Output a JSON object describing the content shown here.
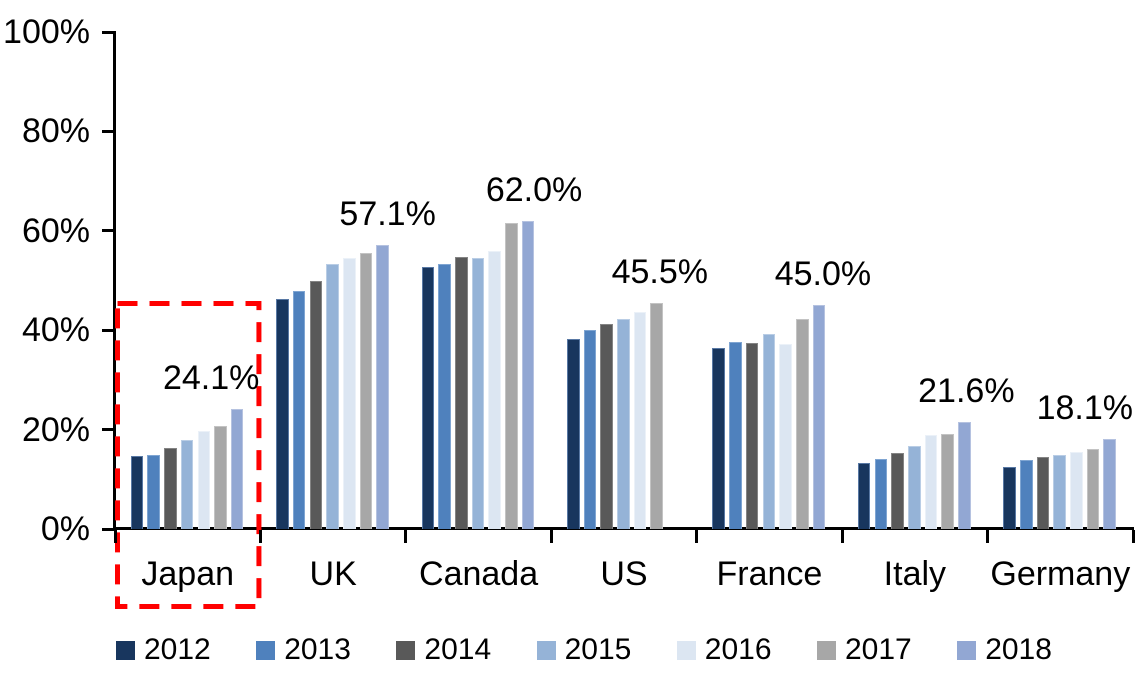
{
  "chart_data": {
    "type": "bar",
    "title": "",
    "xlabel": "",
    "ylabel": "",
    "ylim": [
      0,
      100
    ],
    "yticks": [
      "0%",
      "20%",
      "40%",
      "60%",
      "80%",
      "100%"
    ],
    "grid": false,
    "legend_position": "bottom",
    "background": "#FFFFFF",
    "axis_color": "#000000",
    "categories": [
      "Japan",
      "UK",
      "Canada",
      "US",
      "France",
      "Italy",
      "Germany"
    ],
    "series": [
      {
        "name": "2012",
        "color": "#18365E",
        "edge": "#5878A4",
        "values": [
          14.7,
          46.3,
          52.8,
          38.2,
          36.5,
          13.2,
          12.5
        ]
      },
      {
        "name": "2013",
        "color": "#4F81BD",
        "edge": "#7FA5D2",
        "values": [
          14.9,
          47.8,
          53.3,
          40.0,
          37.6,
          14.1,
          13.9
        ]
      },
      {
        "name": "2014",
        "color": "#595959",
        "edge": "#848484",
        "values": [
          16.4,
          50.0,
          54.8,
          41.2,
          37.5,
          15.2,
          14.5
        ]
      },
      {
        "name": "2015",
        "color": "#95B3D7",
        "edge": "#B9CDE5",
        "values": [
          17.9,
          53.3,
          54.6,
          42.3,
          39.2,
          16.7,
          14.8
        ]
      },
      {
        "name": "2016",
        "color": "#DCE6F2",
        "edge": "#EBF1F8",
        "values": [
          19.8,
          54.6,
          56.0,
          43.6,
          37.2,
          18.9,
          15.5
        ]
      },
      {
        "name": "2017",
        "color": "#A7A7A7",
        "edge": "#C3C3C3",
        "values": [
          20.8,
          55.6,
          61.5,
          45.5,
          42.2,
          19.2,
          16.0
        ]
      },
      {
        "name": "2018",
        "color": "#92A7D3",
        "edge": "#B5C2E0",
        "values": [
          24.1,
          57.1,
          62.0,
          null,
          45.0,
          21.6,
          18.1
        ]
      }
    ],
    "data_labels": [
      {
        "category": "Japan",
        "text": "24.1%",
        "dx": -26
      },
      {
        "category": "UK",
        "text": "57.1%",
        "dx": 5
      },
      {
        "category": "Canada",
        "text": "62.0%",
        "dx": 6
      },
      {
        "category": "US",
        "text": "45.5%",
        "dx": 3
      },
      {
        "category": "France",
        "text": "45.0%",
        "dx": 4
      },
      {
        "category": "Italy",
        "text": "21.6%",
        "dx": 2
      },
      {
        "category": "Germany",
        "text": "18.1%",
        "dx": -25
      }
    ],
    "highlight": {
      "category": "Japan",
      "style": "dashed-box",
      "color": "#FF0000"
    }
  }
}
